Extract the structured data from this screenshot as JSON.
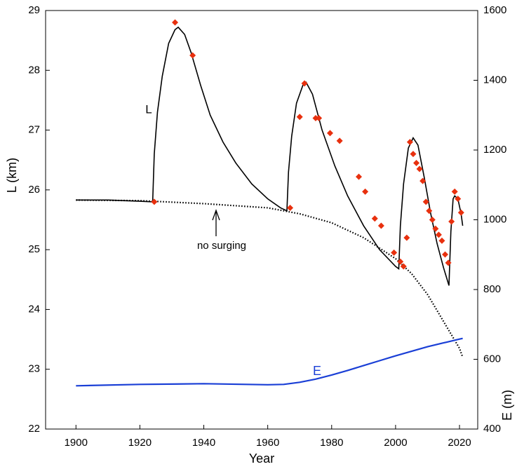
{
  "chart_data": {
    "type": "line",
    "xlabel": "Year",
    "ylabel": "L (km)",
    "y2label": "E (m)",
    "xlim": [
      1890.5,
      2025.7
    ],
    "xticks": [
      1900,
      1920,
      1940,
      1960,
      1980,
      2000,
      2020
    ],
    "ylim": [
      22,
      29
    ],
    "yticks": [
      22,
      23,
      24,
      25,
      26,
      27,
      28,
      29
    ],
    "y2lim": [
      400,
      1600
    ],
    "y2ticks": [
      400,
      600,
      800,
      1000,
      1200,
      1400,
      1600
    ],
    "series": [
      {
        "name": "L",
        "color": "#000000",
        "line_style": "solid",
        "x": [
          1900,
          1910,
          1920,
          1924,
          1924.5,
          1925.5,
          1927,
          1929,
          1931,
          1932,
          1934,
          1936,
          1939,
          1942,
          1946,
          1950,
          1955,
          1960,
          1964,
          1966,
          1966.5,
          1967.5,
          1969,
          1971,
          1972,
          1974,
          1977,
          1981,
          1985,
          1990,
          1995,
          2000,
          2001,
          2001.5,
          2002.5,
          2004,
          2005.5,
          2007,
          2009,
          2011,
          2013,
          2015,
          2016.7,
          2017.3,
          2018,
          2018.5,
          2019.5,
          2020.5,
          2021
        ],
        "values": [
          25.83,
          25.83,
          25.81,
          25.8,
          26.6,
          27.3,
          27.9,
          28.45,
          28.68,
          28.72,
          28.6,
          28.3,
          27.75,
          27.25,
          26.8,
          26.45,
          26.1,
          25.85,
          25.7,
          25.65,
          26.3,
          26.9,
          27.45,
          27.75,
          27.8,
          27.6,
          27.0,
          26.4,
          25.9,
          25.4,
          25.0,
          24.72,
          24.68,
          25.4,
          26.1,
          26.7,
          26.87,
          26.75,
          26.2,
          25.6,
          25.1,
          24.7,
          24.4,
          25.3,
          25.85,
          25.9,
          25.85,
          25.6,
          25.4
        ]
      },
      {
        "name": "no surging",
        "color": "#000000",
        "line_style": "dotted",
        "x": [
          1900,
          1920,
          1940,
          1960,
          1970,
          1980,
          1990,
          2000,
          2005,
          2010,
          2015,
          2020,
          2021
        ],
        "values": [
          25.83,
          25.82,
          25.77,
          25.7,
          25.6,
          25.45,
          25.2,
          24.85,
          24.6,
          24.25,
          23.8,
          23.35,
          23.2
        ]
      },
      {
        "color": "#e8300e",
        "line_style": "none",
        "marker": "diamond",
        "x": [
          1924.5,
          1931,
          1936.5,
          1967,
          1970,
          1971.5,
          1975,
          1976,
          1979.5,
          1982.5,
          1988.5,
          1990.5,
          1993.5,
          1995.5,
          1999.5,
          2001.5,
          2002.5,
          2003.5,
          2004.5,
          2005.5,
          2006.5,
          2007.5,
          2008.5,
          2009.5,
          2010.5,
          2011.5,
          2012.5,
          2013.5,
          2014.5,
          2015.5,
          2016.5,
          2017.5,
          2018.5,
          2019.5,
          2020.5
        ],
        "values": [
          25.8,
          28.8,
          28.25,
          25.7,
          27.22,
          27.78,
          27.2,
          27.2,
          26.95,
          26.82,
          26.22,
          25.97,
          25.52,
          25.4,
          24.95,
          24.8,
          24.72,
          25.2,
          26.8,
          26.6,
          26.45,
          26.35,
          26.15,
          25.8,
          25.65,
          25.5,
          25.35,
          25.25,
          25.15,
          24.92,
          24.78,
          25.47,
          25.97,
          25.85,
          25.62
        ]
      },
      {
        "name": "E",
        "color": "#1a3fd6",
        "line_style": "solid",
        "axis": "y2",
        "x": [
          1900,
          1920,
          1940,
          1960,
          1965,
          1970,
          1975,
          1980,
          1985,
          1990,
          1995,
          2000,
          2005,
          2010,
          2015,
          2020,
          2021
        ],
        "values": [
          524,
          528,
          530,
          527,
          528,
          534,
          543,
          555,
          568,
          582,
          596,
          610,
          623,
          636,
          647,
          658,
          660
        ]
      }
    ]
  }
}
